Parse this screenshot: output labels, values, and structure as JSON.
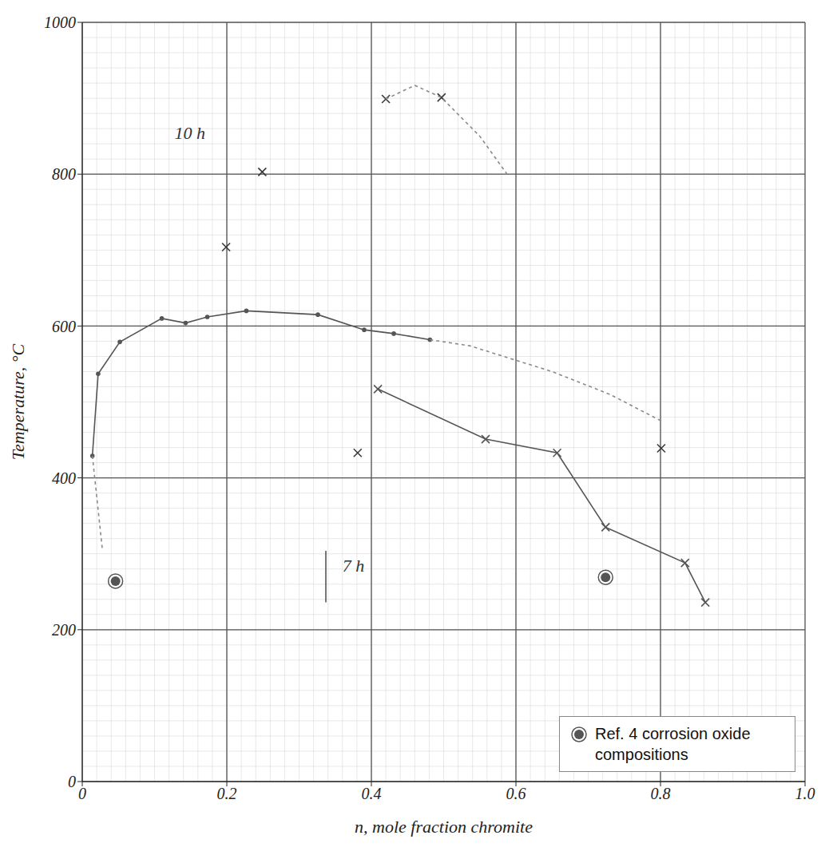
{
  "chart_data": {
    "type": "scatter",
    "xlabel": "n, mole fraction chromite",
    "ylabel": "Temperature, °C",
    "xlim": [
      0,
      1
    ],
    "ylim": [
      0,
      1000
    ],
    "xticks": [
      0,
      0.2,
      0.4,
      0.6,
      0.8,
      {
        "value": 1,
        "label": "1.0"
      }
    ],
    "yticks": [
      0,
      200,
      400,
      600,
      800,
      1000
    ],
    "grid": true,
    "legend": "lower right",
    "series": [
      {
        "color": "#3a3a3a",
        "marker": "x",
        "line_style": "none",
        "x": [
          0.199,
          0.249,
          0.42,
          0.497
        ],
        "values": [
          704,
          803,
          899,
          901
        ]
      },
      {
        "color": "#8a8a8a",
        "marker": "none",
        "line_style": "dashed",
        "x": [
          0.42,
          0.46,
          0.497,
          0.55,
          0.59
        ],
        "values": [
          899,
          917,
          901,
          850,
          797
        ]
      },
      {
        "color": "#555555",
        "marker": "dot",
        "line_style": "solid",
        "x": [
          0.014,
          0.022,
          0.052,
          0.11,
          0.143,
          0.173,
          0.227,
          0.326,
          0.39,
          0.431,
          0.481
        ],
        "values": [
          429,
          537,
          579,
          610,
          604,
          612,
          620,
          615,
          595,
          590,
          582
        ]
      },
      {
        "color": "#8a8a8a",
        "marker": "none",
        "line_style": "dashed",
        "x": [
          0.481,
          0.536,
          0.65,
          0.73,
          0.801
        ],
        "values": [
          582,
          574,
          540,
          510,
          475
        ]
      },
      {
        "color": "#8a8a8a",
        "marker": "none",
        "line_style": "dashed",
        "x": [
          0.014,
          0.028
        ],
        "values": [
          429,
          304
        ]
      },
      {
        "color": "#555555",
        "marker": "x",
        "line_style": "solid",
        "x": [
          0.409,
          0.558,
          0.657,
          0.724,
          0.834,
          0.862
        ],
        "values": [
          517,
          451,
          433,
          335,
          288,
          236
        ]
      },
      {
        "color": "#3a3a3a",
        "marker": "x",
        "line_style": "none",
        "x": [
          0.381,
          0.801
        ],
        "values": [
          433,
          439
        ]
      },
      {
        "color": "#555555",
        "marker": "none",
        "line_style": "solid",
        "x": [
          0.337,
          0.337
        ],
        "values": [
          304,
          236
        ]
      },
      {
        "name": "Ref. 4 corrosion oxide compositions",
        "color": "#555555",
        "marker": "circle",
        "line_style": "none",
        "x": [
          0.046,
          0.724
        ],
        "values": [
          264,
          269
        ]
      }
    ],
    "annotations": [
      {
        "text": "10 h",
        "x": 0.149,
        "y": 855
      },
      {
        "text": "7 h",
        "x": 0.375,
        "y": 285
      }
    ]
  }
}
